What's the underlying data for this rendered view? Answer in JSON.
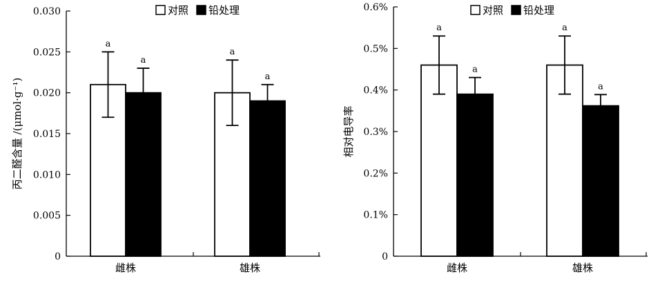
{
  "chart_data": [
    {
      "type": "bar",
      "categories": [
        "雌株",
        "雄株"
      ],
      "ylabel": "丙二醛含量 /(μmol·g⁻¹)",
      "ylim": [
        0,
        0.03
      ],
      "yticks": [
        0,
        0.005,
        0.01,
        0.015,
        0.02,
        0.025,
        0.03
      ],
      "ytick_labels": [
        "0",
        "0.005",
        "0.010",
        "0.015",
        "0.020",
        "0.025",
        "0.030"
      ],
      "legend": {
        "placement": "top-center",
        "items": [
          "对照",
          "铅处理"
        ]
      },
      "series": [
        {
          "name": "对照",
          "color": "#ffffff",
          "values": [
            0.021,
            0.02
          ],
          "errors": [
            0.004,
            0.004
          ],
          "labels": [
            "a",
            "a"
          ]
        },
        {
          "name": "铅处理",
          "color": "#000000",
          "values": [
            0.02,
            0.019
          ],
          "errors": [
            0.003,
            0.002
          ],
          "labels": [
            "a",
            "a"
          ]
        }
      ]
    },
    {
      "type": "bar",
      "categories": [
        "雌株",
        "雄株"
      ],
      "ylabel": "相对电导率",
      "ylim": [
        0,
        0.6
      ],
      "yticks": [
        0,
        0.1,
        0.2,
        0.3,
        0.4,
        0.5,
        0.6
      ],
      "ytick_labels": [
        "0",
        "0.1%",
        "0.2%",
        "0.3%",
        "0.4%",
        "0.5%",
        "0.6%"
      ],
      "legend": {
        "placement": "top-center",
        "items": [
          "对照",
          "铅处理"
        ]
      },
      "series": [
        {
          "name": "对照",
          "color": "#ffffff",
          "values": [
            0.46,
            0.46
          ],
          "errors": [
            0.07,
            0.07
          ],
          "labels": [
            "a",
            "a"
          ]
        },
        {
          "name": "铅处理",
          "color": "#000000",
          "values": [
            0.39,
            0.362
          ],
          "errors": [
            0.04,
            0.027
          ],
          "labels": [
            "a",
            "a"
          ]
        }
      ]
    }
  ]
}
